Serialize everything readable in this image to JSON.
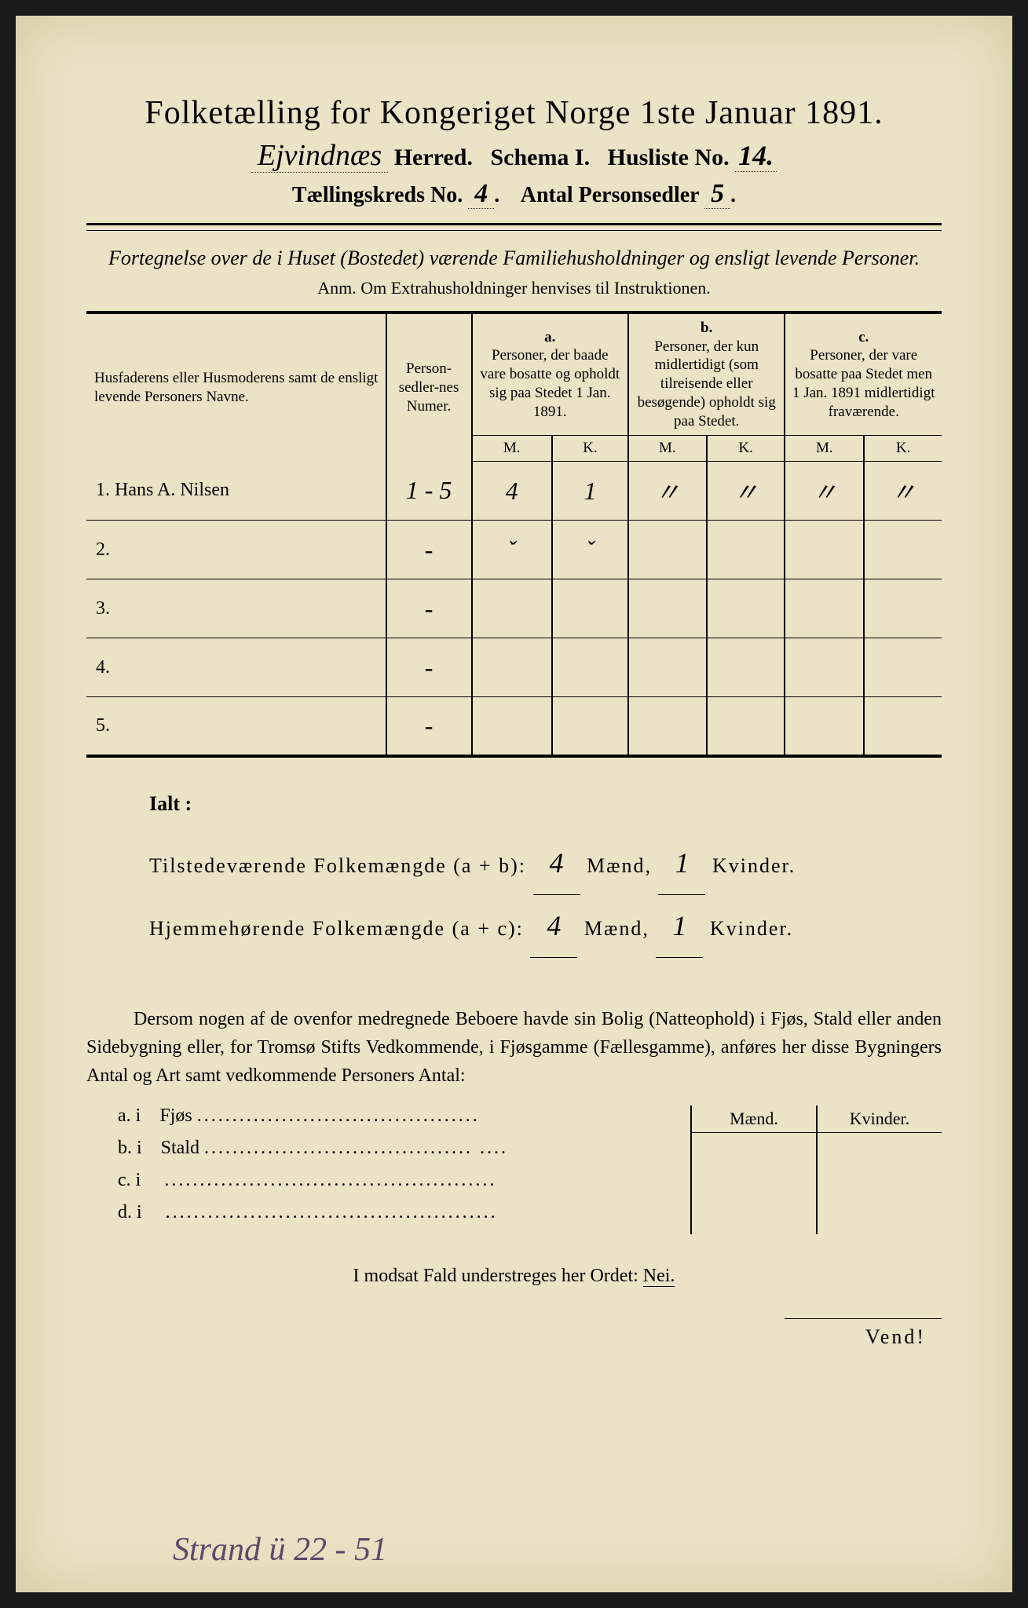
{
  "title": "Folketælling for Kongeriget Norge 1ste Januar 1891.",
  "herred_script": "Ejvindnæs",
  "label_herred": "Herred.",
  "label_schema": "Schema I.",
  "label_husliste": "Husliste No.",
  "husliste_no": "14.",
  "label_kreds": "Tællingskreds No.",
  "kreds_no": "4",
  "label_antal": "Antal Personsedler",
  "antal_val": "5",
  "fortegnelse": "Fortegnelse over de i Huset (Bostedet) værende Familiehusholdninger og ensligt levende Personer.",
  "anm": "Anm. Om Extrahusholdninger henvises til Instruktionen.",
  "table": {
    "col1": "Husfaderens eller Husmoderens samt de ensligt levende Personers Navne.",
    "col2": "Person-sedler-nes Numer.",
    "colA_head": "a.",
    "colA": "Personer, der baade vare bosatte og opholdt sig paa Stedet 1 Jan. 1891.",
    "colB_head": "b.",
    "colB": "Personer, der kun midlertidigt (som tilreisende eller besøgende) opholdt sig paa Stedet.",
    "colC_head": "c.",
    "colC": "Personer, der vare bosatte paa Stedet men 1 Jan. 1891 midlertidigt fraværende.",
    "M": "M.",
    "K": "K.",
    "rows": [
      {
        "num": "1.",
        "name": "Hans A. Nilsen",
        "psn": "1 - 5",
        "aM": "4",
        "aK": "1",
        "bM": "〃",
        "bK": "〃",
        "cM": "〃",
        "cK": "〃"
      },
      {
        "num": "2.",
        "name": "",
        "psn": "-",
        "aM": "ˇ",
        "aK": "ˇ",
        "bM": "",
        "bK": "",
        "cM": "",
        "cK": ""
      },
      {
        "num": "3.",
        "name": "",
        "psn": "-",
        "aM": "",
        "aK": "",
        "bM": "",
        "bK": "",
        "cM": "",
        "cK": ""
      },
      {
        "num": "4.",
        "name": "",
        "psn": "-",
        "aM": "",
        "aK": "",
        "bM": "",
        "bK": "",
        "cM": "",
        "cK": ""
      },
      {
        "num": "5.",
        "name": "",
        "psn": "-",
        "aM": "",
        "aK": "",
        "bM": "",
        "bK": "",
        "cM": "",
        "cK": ""
      }
    ]
  },
  "ialt": {
    "title": "Ialt :",
    "line1_label": "Tilstedeværende Folkemængde (a + b):",
    "line1_M": "4",
    "line1_K": "1",
    "line2_label": "Hjemmehørende Folkemængde (a + c):",
    "line2_M": "4",
    "line2_K": "1",
    "maend": "Mænd,",
    "kvinder": "Kvinder."
  },
  "dersom": "Dersom nogen af de ovenfor medregnede Beboere havde sin Bolig (Natteophold) i Fjøs, Stald eller anden Sidebygning eller, for Tromsø Stifts Vedkommende, i Fjøsgamme (Fællesgamme), anføres her disse Bygningers Antal og Art samt vedkommende Personers Antal:",
  "fjos": {
    "maend": "Mænd.",
    "kvinder": "Kvinder.",
    "rows": [
      {
        "label": "a.  i",
        "type": "Fjøs",
        "dots": "........................................"
      },
      {
        "label": "b.  i",
        "type": "Stald",
        "dots": "......................................  ...."
      },
      {
        "label": "c.  i",
        "type": "",
        "dots": "..............................................."
      },
      {
        "label": "d.  i",
        "type": "",
        "dots": "..............................................."
      }
    ]
  },
  "modsat": "I modsat Fald understreges her Ordet:",
  "nei": "Nei.",
  "vend": "Vend!",
  "bottom_script": "Strand ü 22 - 51",
  "colors": {
    "paper": "#ebe3c5",
    "ink": "#1a1a1a",
    "script": "#3a3a3a",
    "bottom_ink": "#5a4a6a"
  }
}
